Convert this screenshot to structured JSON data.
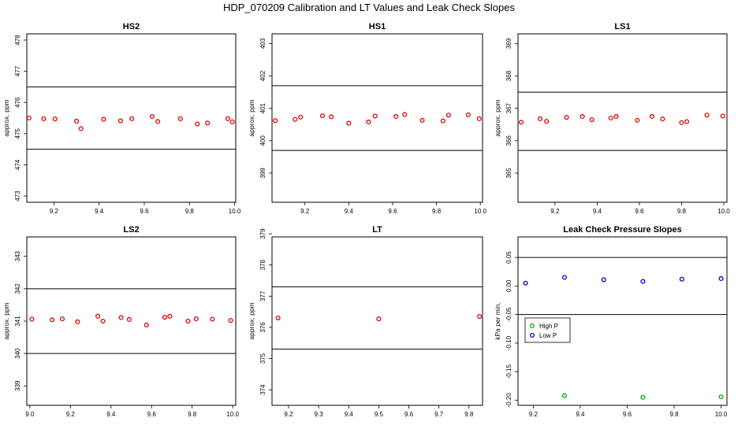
{
  "title": "HDP_070209  Calibration and LT Values and Leak Check Slopes",
  "chart_data": [
    {
      "type": "scatter",
      "title": "HS2",
      "ylabel": "approx. ppm",
      "xlim": [
        9.08,
        10.005
      ],
      "ylim": [
        472.8,
        478.2
      ],
      "xticks": [
        9.2,
        9.4,
        9.6,
        9.8,
        10.0
      ],
      "xtick_labels": [
        "9.2",
        "9.4",
        "9.6",
        "9.8",
        "10.0"
      ],
      "yticks": [
        473,
        474,
        475,
        476,
        477,
        478
      ],
      "ytick_labels": [
        "473",
        "474",
        "475",
        "476",
        "477",
        "478"
      ],
      "hlines": [
        476.5,
        474.5
      ],
      "marker_color": "#e00000",
      "x": [
        9.09,
        9.155,
        9.205,
        9.3,
        9.32,
        9.42,
        9.495,
        9.545,
        9.635,
        9.66,
        9.76,
        9.835,
        9.88,
        9.97,
        9.99
      ],
      "y": [
        475.5,
        475.48,
        475.47,
        475.4,
        475.16,
        475.46,
        475.41,
        475.48,
        475.55,
        475.39,
        475.48,
        475.31,
        475.34,
        475.48,
        475.38
      ]
    },
    {
      "type": "scatter",
      "title": "HS1",
      "ylabel": "approx. ppm",
      "xlim": [
        9.05,
        10.01
      ],
      "ylim": [
        398.1,
        403.3
      ],
      "xticks": [
        9.2,
        9.4,
        9.6,
        9.8,
        10.0
      ],
      "xtick_labels": [
        "9.2",
        "9.4",
        "9.6",
        "9.8",
        "10.0"
      ],
      "yticks": [
        399,
        400,
        401,
        402,
        403
      ],
      "ytick_labels": [
        "399",
        "400",
        "401",
        "402",
        "403"
      ],
      "hlines": [
        401.7,
        399.7
      ],
      "marker_color": "#e00000",
      "x": [
        9.065,
        9.155,
        9.18,
        9.28,
        9.32,
        9.4,
        9.49,
        9.52,
        9.615,
        9.655,
        9.735,
        9.83,
        9.855,
        9.945,
        9.995
      ],
      "y": [
        400.62,
        400.66,
        400.73,
        400.77,
        400.74,
        400.54,
        400.58,
        400.76,
        400.75,
        400.81,
        400.63,
        400.61,
        400.79,
        400.8,
        400.68
      ]
    },
    {
      "type": "scatter",
      "title": "LS1",
      "ylabel": "approx. ppm",
      "xlim": [
        9.025,
        10.015
      ],
      "ylim": [
        364.1,
        369.3
      ],
      "xticks": [
        9.2,
        9.4,
        9.6,
        9.8,
        10.0
      ],
      "xtick_labels": [
        "9.2",
        "9.4",
        "9.6",
        "9.8",
        "10.0"
      ],
      "yticks": [
        365,
        366,
        367,
        368,
        369
      ],
      "ytick_labels": [
        "365",
        "366",
        "367",
        "368",
        "369"
      ],
      "hlines": [
        367.5,
        365.7
      ],
      "marker_color": "#e00000",
      "x": [
        9.04,
        9.13,
        9.16,
        9.255,
        9.33,
        9.375,
        9.465,
        9.49,
        9.59,
        9.66,
        9.71,
        9.8,
        9.825,
        9.92,
        9.995
      ],
      "y": [
        366.57,
        366.68,
        366.6,
        366.72,
        366.75,
        366.65,
        366.7,
        366.75,
        366.63,
        366.75,
        366.67,
        366.56,
        366.59,
        366.79,
        366.76
      ]
    },
    {
      "type": "scatter",
      "title": "LS2",
      "ylabel": "approx. ppm",
      "xlim": [
        8.985,
        10.015
      ],
      "ylim": [
        338.4,
        343.6
      ],
      "xticks": [
        9.0,
        9.2,
        9.4,
        9.6,
        9.8,
        10.0
      ],
      "xtick_labels": [
        "9.0",
        "9.2",
        "9.4",
        "9.6",
        "9.8",
        "10.0"
      ],
      "yticks": [
        339,
        340,
        341,
        342,
        343
      ],
      "ytick_labels": [
        "339",
        "340",
        "341",
        "342",
        "343"
      ],
      "hlines": [
        342.0,
        340.0
      ],
      "marker_color": "#e00000",
      "x": [
        9.01,
        9.11,
        9.16,
        9.235,
        9.335,
        9.36,
        9.45,
        9.49,
        9.575,
        9.665,
        9.69,
        9.78,
        9.82,
        9.9,
        9.99
      ],
      "y": [
        341.06,
        341.04,
        341.07,
        340.98,
        341.15,
        341.0,
        341.11,
        341.05,
        340.88,
        341.12,
        341.15,
        341.0,
        341.07,
        341.06,
        341.02
      ]
    },
    {
      "type": "scatter",
      "title": "LT",
      "ylabel": "approx. ppm",
      "xlim": [
        9.145,
        9.845
      ],
      "ylim": [
        373.5,
        378.9
      ],
      "xticks": [
        9.2,
        9.3,
        9.4,
        9.5,
        9.6,
        9.7,
        9.8
      ],
      "xtick_labels": [
        "9.2",
        "9.3",
        "9.4",
        "9.5",
        "9.6",
        "9.7",
        "9.8"
      ],
      "yticks": [
        374,
        375,
        376,
        377,
        378,
        379
      ],
      "ytick_labels": [
        "374",
        "375",
        "376",
        "377",
        "378",
        "379"
      ],
      "hlines": [
        377.3,
        375.3
      ],
      "marker_color": "#e00000",
      "x": [
        9.165,
        9.5,
        9.835
      ],
      "y": [
        376.3,
        376.27,
        376.35
      ]
    },
    {
      "type": "scatter",
      "title": "Leak Check Pressure Slopes",
      "ylabel": "kPa per min.",
      "xlim": [
        9.135,
        10.025
      ],
      "ylim": [
        -0.209,
        0.086
      ],
      "xticks": [
        9.2,
        9.4,
        9.6,
        9.8,
        10.0
      ],
      "xtick_labels": [
        "9.2",
        "9.4",
        "9.6",
        "9.8",
        "10.0"
      ],
      "yticks": [
        -0.2,
        -0.15,
        -0.1,
        -0.05,
        0.0,
        0.05
      ],
      "ytick_labels": [
        "-0.20",
        "-0.15",
        "-0.10",
        "-0.05",
        "0.00",
        "0.05"
      ],
      "hlines": [
        0.05,
        -0.05
      ],
      "legend_position": "center-left",
      "series": [
        {
          "name": "High P",
          "color": "#00b000",
          "x": [
            9.333,
            9.667,
            10.0
          ],
          "y": [
            -0.192,
            -0.195,
            -0.194
          ]
        },
        {
          "name": "Low P",
          "color": "#0000c8",
          "x": [
            9.167,
            9.333,
            9.5,
            9.667,
            9.833,
            10.0
          ],
          "y": [
            0.005,
            0.015,
            0.011,
            0.008,
            0.012,
            0.013
          ]
        }
      ]
    }
  ]
}
